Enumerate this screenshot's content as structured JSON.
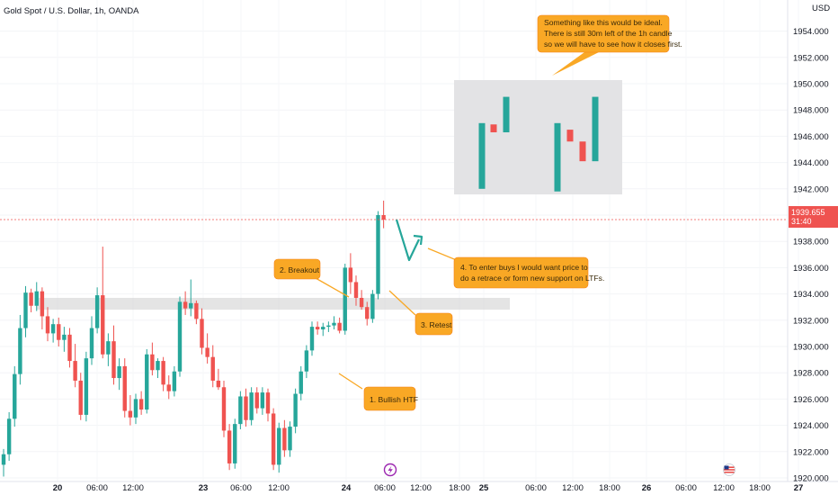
{
  "chart_title": "Gold Spot / U.S. Dollar, 1h, OANDA",
  "currency": "USD",
  "colors": {
    "up": "#26a69a",
    "down": "#ef5350",
    "note_bg": "#f9a825",
    "note_border": "#f57f17",
    "price_line": "#ef5350",
    "zone": "#d6d6d6",
    "example_box": "#e3e3e5"
  },
  "chart_data": {
    "type": "candlestick",
    "ylim": [
      1920,
      1955.5
    ],
    "y_ticks": [
      "1920.000",
      "1922.000",
      "1924.000",
      "1926.000",
      "1928.000",
      "1930.000",
      "1932.000",
      "1934.000",
      "1936.000",
      "1938.000",
      "1940.000",
      "1942.000",
      "1944.000",
      "1946.000",
      "1948.000",
      "1950.000",
      "1952.000",
      "1954.000"
    ],
    "x_ticks": [
      "20",
      "06:00",
      "12:00",
      "23",
      "06:00",
      "12:00",
      "24",
      "06:00",
      "12:00",
      "18:00",
      "25",
      "06:00",
      "12:00",
      "18:00",
      "26",
      "06:00",
      "12:00",
      "18:00",
      "27"
    ],
    "last_price": "1939.655",
    "countdown": "31:40",
    "candles": [
      [
        1921.0,
        1922.2,
        1920.1,
        1921.8
      ],
      [
        1921.8,
        1925.0,
        1921.3,
        1924.5
      ],
      [
        1924.5,
        1928.5,
        1923.9,
        1927.9
      ],
      [
        1927.9,
        1932.4,
        1927.1,
        1931.4
      ],
      [
        1931.4,
        1934.6,
        1930.7,
        1934.1
      ],
      [
        1934.1,
        1934.4,
        1932.6,
        1933.1
      ],
      [
        1933.1,
        1934.9,
        1932.7,
        1934.2
      ],
      [
        1934.2,
        1934.5,
        1931.3,
        1932.3
      ],
      [
        1932.3,
        1933.0,
        1930.4,
        1931.0
      ],
      [
        1931.0,
        1932.1,
        1930.3,
        1931.7
      ],
      [
        1931.7,
        1932.2,
        1930.0,
        1930.5
      ],
      [
        1930.5,
        1931.5,
        1929.6,
        1930.9
      ],
      [
        1930.9,
        1931.4,
        1928.4,
        1928.9
      ],
      [
        1928.9,
        1930.2,
        1926.9,
        1927.4
      ],
      [
        1927.4,
        1928.0,
        1924.4,
        1924.8
      ],
      [
        1924.8,
        1929.6,
        1924.3,
        1929.1
      ],
      [
        1929.1,
        1932.3,
        1928.6,
        1931.4
      ],
      [
        1931.4,
        1934.5,
        1931.0,
        1933.9
      ],
      [
        1933.9,
        1937.6,
        1929.1,
        1929.4
      ],
      [
        1929.4,
        1931.0,
        1928.5,
        1930.4
      ],
      [
        1930.4,
        1931.6,
        1927.1,
        1927.6
      ],
      [
        1927.6,
        1929.1,
        1926.7,
        1928.5
      ],
      [
        1928.5,
        1929.1,
        1924.6,
        1925.1
      ],
      [
        1925.1,
        1926.3,
        1924.0,
        1924.6
      ],
      [
        1924.6,
        1926.4,
        1924.1,
        1926.0
      ],
      [
        1926.0,
        1926.6,
        1924.8,
        1925.2
      ],
      [
        1925.2,
        1929.8,
        1924.9,
        1929.4
      ],
      [
        1929.4,
        1930.3,
        1927.8,
        1928.2
      ],
      [
        1928.2,
        1929.1,
        1927.6,
        1928.9
      ],
      [
        1928.9,
        1929.2,
        1926.6,
        1927.1
      ],
      [
        1927.1,
        1927.8,
        1926.0,
        1926.6
      ],
      [
        1926.6,
        1928.5,
        1926.2,
        1928.1
      ],
      [
        1928.1,
        1933.8,
        1927.7,
        1933.4
      ],
      [
        1933.4,
        1934.2,
        1932.4,
        1932.9
      ],
      [
        1932.9,
        1935.1,
        1932.3,
        1933.3
      ],
      [
        1933.3,
        1933.5,
        1931.7,
        1932.1
      ],
      [
        1932.1,
        1932.9,
        1929.4,
        1929.9
      ],
      [
        1929.9,
        1931.0,
        1928.7,
        1929.2
      ],
      [
        1929.2,
        1930.1,
        1926.9,
        1927.4
      ],
      [
        1927.4,
        1928.3,
        1926.7,
        1926.9
      ],
      [
        1926.9,
        1927.4,
        1923.1,
        1923.6
      ],
      [
        1923.6,
        1924.1,
        1920.6,
        1921.1
      ],
      [
        1921.1,
        1924.5,
        1920.7,
        1924.1
      ],
      [
        1924.1,
        1926.6,
        1923.7,
        1926.2
      ],
      [
        1926.2,
        1926.8,
        1923.9,
        1924.4
      ],
      [
        1924.4,
        1926.9,
        1924.0,
        1926.5
      ],
      [
        1926.5,
        1926.9,
        1924.9,
        1925.3
      ],
      [
        1925.3,
        1926.9,
        1924.8,
        1926.5
      ],
      [
        1926.5,
        1926.8,
        1924.3,
        1924.9
      ],
      [
        1924.9,
        1925.3,
        1920.6,
        1921.0
      ],
      [
        1921.0,
        1924.2,
        1920.4,
        1923.8
      ],
      [
        1923.8,
        1924.4,
        1921.6,
        1922.1
      ],
      [
        1922.1,
        1924.3,
        1921.6,
        1923.9
      ],
      [
        1923.9,
        1926.8,
        1923.4,
        1926.4
      ],
      [
        1926.4,
        1928.5,
        1925.9,
        1928.1
      ],
      [
        1928.1,
        1930.1,
        1927.6,
        1929.7
      ],
      [
        1929.7,
        1931.9,
        1929.3,
        1931.5
      ],
      [
        1931.5,
        1931.9,
        1930.9,
        1931.3
      ],
      [
        1931.3,
        1931.8,
        1930.8,
        1931.5
      ],
      [
        1931.5,
        1931.9,
        1931.1,
        1931.6
      ],
      [
        1931.6,
        1932.3,
        1931.3,
        1931.8
      ],
      [
        1931.8,
        1932.2,
        1931.0,
        1931.2
      ],
      [
        1931.2,
        1936.3,
        1930.9,
        1936.0
      ],
      [
        1936.0,
        1937.1,
        1934.0,
        1934.9
      ],
      [
        1934.9,
        1935.4,
        1933.1,
        1933.7
      ],
      [
        1933.7,
        1934.3,
        1932.8,
        1933.0
      ],
      [
        1933.0,
        1933.4,
        1931.6,
        1932.1
      ],
      [
        1932.1,
        1934.3,
        1931.8,
        1934.0
      ],
      [
        1934.0,
        1940.3,
        1933.6,
        1940.0
      ],
      [
        1940.0,
        1941.1,
        1939.0,
        1939.655
      ]
    ],
    "example_candles": [
      [
        1942.0,
        1947.3,
        1942.0,
        1947.0
      ],
      [
        1946.9,
        1946.9,
        1946.2,
        1946.3
      ],
      [
        1946.3,
        1949.1,
        1946.3,
        1949.0
      ],
      [
        1941.8,
        1947.1,
        1941.8,
        1947.0
      ],
      [
        1946.5,
        1946.5,
        1945.6,
        1945.6
      ],
      [
        1945.6,
        1945.6,
        1944.1,
        1944.1
      ],
      [
        1944.1,
        1949.1,
        1944.1,
        1949.0
      ]
    ],
    "support_zone": [
      1932.8,
      1933.7
    ]
  },
  "annotations": {
    "note_top": [
      "Something like this would be ideal.",
      "There is still 30m left of the 1h candle",
      "so we will have to see how it closes first."
    ],
    "note_breakout": "2. Breakout",
    "note_retest": "3. Retest",
    "note_bullish": "1. Bullish HTF",
    "note_enter": [
      "4. To enter buys I would want price to",
      "do a retrace or form new support on LTFs."
    ]
  },
  "icons": {
    "event_icon": "lightning-icon",
    "flag_icon": "us-flag-icon"
  }
}
